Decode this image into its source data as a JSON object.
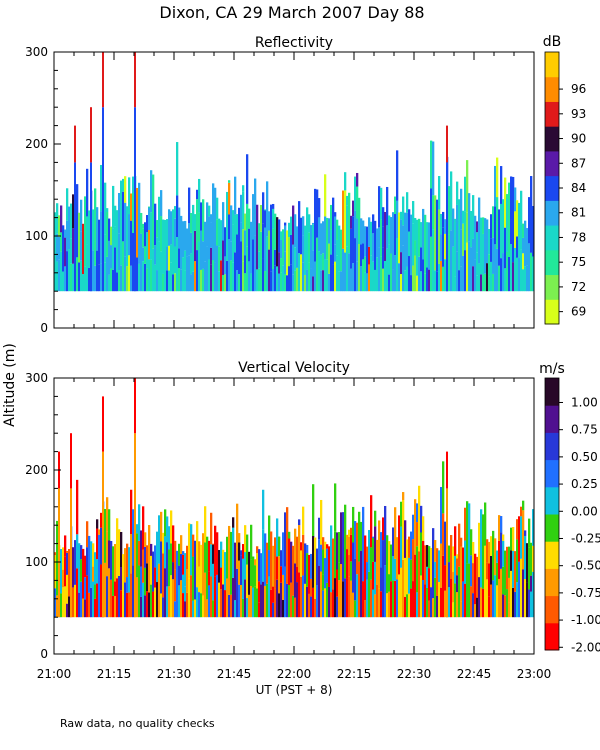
{
  "chart_data": {
    "type": "heatmap",
    "title": "Dixon, CA 29 March 2007  Day  88",
    "ylabel": "Altitude (m)",
    "xlabel": "UT  (PST + 8)",
    "footnote": "Raw data, no quality checks",
    "x_ticks": [
      "21:00",
      "21:15",
      "21:30",
      "21:45",
      "22:00",
      "22:15",
      "22:30",
      "22:45",
      "23:00"
    ],
    "xlim": [
      "21:00",
      "23:00"
    ],
    "panels": [
      {
        "title": "Reflectivity",
        "units": "dB",
        "ylim": [
          0,
          300
        ],
        "y_ticks": [
          0,
          100,
          200,
          300
        ],
        "colorbar_ticks": [
          69,
          72,
          75,
          78,
          81,
          84,
          87,
          90,
          93,
          96
        ],
        "colorbar_colors": [
          "#d8ff1a",
          "#7cf050",
          "#22e89a",
          "#1ad8c8",
          "#2aa8ee",
          "#1a48f0",
          "#5a1aa8",
          "#2a0a34",
          "#e01a1a",
          "#ff8c00",
          "#ffcc00"
        ],
        "echo_base_altitude_m": 40,
        "typical_echo_top_m": [
          100,
          180
        ],
        "max_echo_top_m": [
          {
            "time": "21:05",
            "altitude_m": 220
          },
          {
            "time": "21:09",
            "altitude_m": 240
          },
          {
            "time": "21:12",
            "altitude_m": 300
          },
          {
            "time": "21:20",
            "altitude_m": 300
          },
          {
            "time": "22:38",
            "altitude_m": 220
          }
        ]
      },
      {
        "title": "Vertical Velocity",
        "units": "m/s",
        "ylim": [
          0,
          300
        ],
        "y_ticks": [
          0,
          100,
          200,
          300
        ],
        "colorbar_ticks": [
          "1.00",
          "0.75",
          "0.50",
          "0.25",
          "0.00",
          "-0.25",
          "-0.50",
          "-0.75",
          "-1.00",
          "-2.00"
        ],
        "colorbar_colors": [
          "#ff0000",
          "#ff5a00",
          "#ff9a00",
          "#ffdc00",
          "#30d010",
          "#10c0e0",
          "#2070ff",
          "#2838d8",
          "#501090",
          "#280828"
        ],
        "echo_base_altitude_m": 40,
        "typical_echo_top_m": [
          100,
          180
        ],
        "max_echo_top_m": [
          {
            "time": "21:01",
            "altitude_m": 220
          },
          {
            "time": "21:04",
            "altitude_m": 240
          },
          {
            "time": "21:12",
            "altitude_m": 280
          },
          {
            "time": "21:20",
            "altitude_m": 300
          },
          {
            "time": "22:38",
            "altitude_m": 220
          }
        ]
      }
    ]
  }
}
